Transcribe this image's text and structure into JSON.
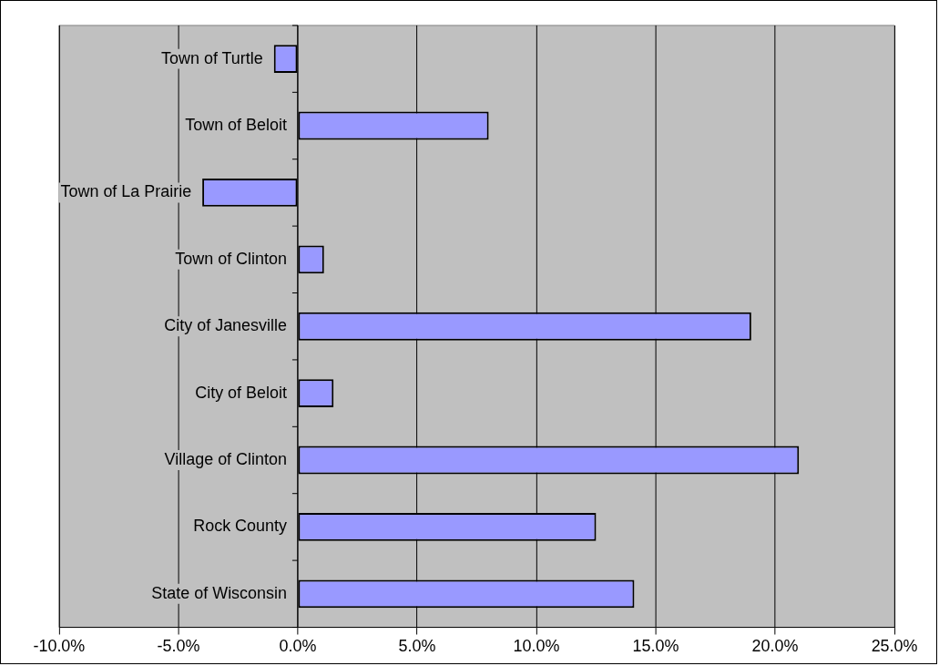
{
  "chart_data": {
    "type": "bar",
    "orientation": "horizontal",
    "categories": [
      "Town of Turtle",
      "Town of Beloit",
      "Town of La Prairie",
      "Town of Clinton",
      "City of Janesville",
      "City of Beloit",
      "Village of Clinton",
      "Rock County",
      "State of Wisconsin"
    ],
    "values": [
      -1.0,
      8.0,
      -4.0,
      1.1,
      19.0,
      1.5,
      21.0,
      12.5,
      14.1
    ],
    "color": "#9999ff",
    "xlim": [
      -10,
      25
    ],
    "xticks": [
      {
        "value": -10,
        "label": "-10.0%"
      },
      {
        "value": -5,
        "label": "-5.0%"
      },
      {
        "value": 0,
        "label": "0.0%"
      },
      {
        "value": 5,
        "label": "5.0%"
      },
      {
        "value": 10,
        "label": "10.0%"
      },
      {
        "value": 15,
        "label": "15.0%"
      },
      {
        "value": 20,
        "label": "20.0%"
      },
      {
        "value": 25,
        "label": "25.0%"
      }
    ],
    "grid": "x",
    "legend": false
  }
}
